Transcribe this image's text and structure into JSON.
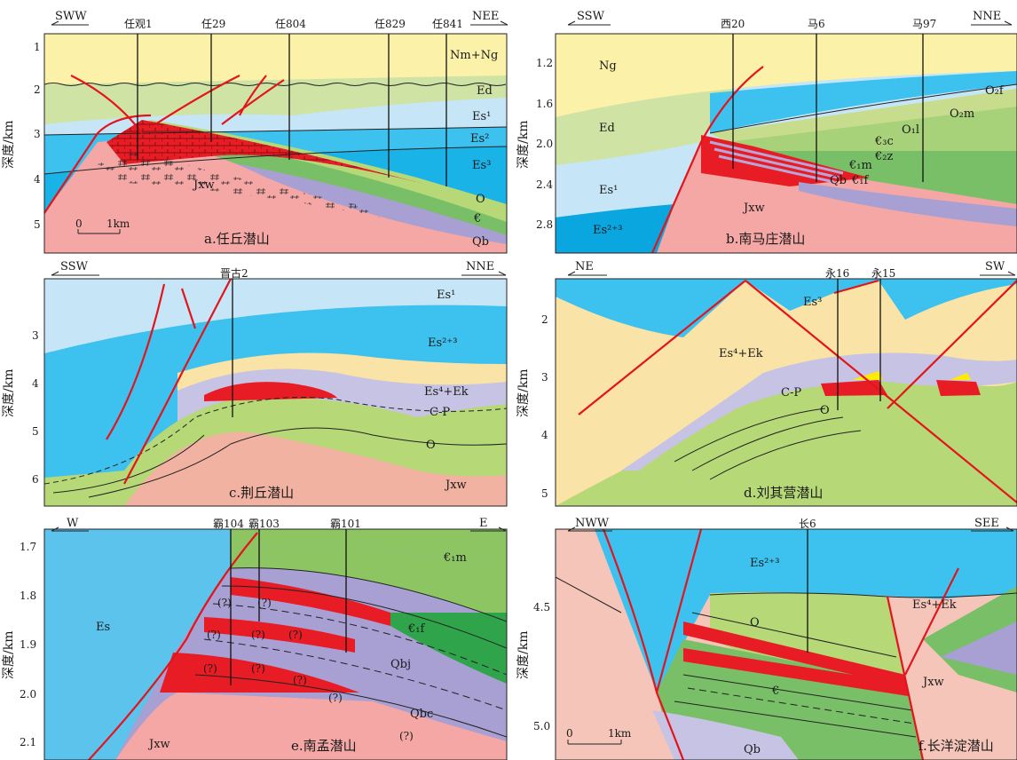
{
  "figure": {
    "depth_axis_label": "深度/km",
    "panels": [
      {
        "id": "a",
        "caption": "a.任丘潜山",
        "dir_left": "SWW",
        "dir_right": "NEE",
        "wells": [
          "任观1",
          "任29",
          "任804",
          "任829",
          "任841"
        ],
        "ticks": [
          "1",
          "2",
          "3",
          "4",
          "5"
        ],
        "units": [
          "Nm+Ng",
          "Ed",
          "Es¹",
          "Es²",
          "Es³",
          "Jxw",
          "O",
          "€",
          "Qb"
        ],
        "scale_bar": {
          "start": "0",
          "end": "1km"
        }
      },
      {
        "id": "b",
        "caption": "b.南马庄潜山",
        "dir_left": "SSW",
        "dir_right": "NNE",
        "wells": [
          "西20",
          "马6",
          "马97"
        ],
        "ticks": [
          "1.2",
          "1.6",
          "2.0",
          "2.4",
          "2.8"
        ],
        "units": [
          "Ng",
          "Ed",
          "Es¹",
          "Es²⁺³",
          "Jxw",
          "O₂f",
          "O₂m",
          "O₁l",
          "€₃c",
          "€₂z",
          "€₁m",
          "Qb",
          "€₁f"
        ]
      },
      {
        "id": "c",
        "caption": "c.荆丘潜山",
        "dir_left": "SSW",
        "dir_right": "NNE",
        "wells": [
          "晋古2"
        ],
        "ticks": [
          "3",
          "4",
          "5",
          "6"
        ],
        "units": [
          "Es¹",
          "Es²⁺³",
          "Es⁴+Ek",
          "C-P",
          "O",
          "Jxw"
        ]
      },
      {
        "id": "d",
        "caption": "d.刘其营潜山",
        "dir_left": "NE",
        "dir_right": "SW",
        "wells": [
          "永16",
          "永15"
        ],
        "ticks": [
          "2",
          "3",
          "4",
          "5"
        ],
        "units": [
          "Es³",
          "Es⁴+Ek",
          "C-P",
          "O"
        ]
      },
      {
        "id": "e",
        "caption": "e.南孟潜山",
        "dir_left": "W",
        "dir_right": "E",
        "wells": [
          "霸104",
          "霸103",
          "霸101"
        ],
        "ticks": [
          "1.7",
          "1.8",
          "1.9",
          "2.0",
          "2.1"
        ],
        "units": [
          "Es",
          "€₁m",
          "€₁f",
          "Qbj",
          "Qbc",
          "Jxw"
        ],
        "uncertain_marks": [
          "(?)",
          "(?)",
          "(?)",
          "(?)",
          "(?)",
          "(?)",
          "(?)",
          "(?)",
          "(?)",
          "(?)"
        ]
      },
      {
        "id": "f",
        "caption": "f.长洋淀潜山",
        "dir_left": "NWW",
        "dir_right": "SEE",
        "wells": [
          "长6"
        ],
        "ticks": [
          "4.5",
          "5.0"
        ],
        "units": [
          "Es²⁺³",
          "Es⁴+Ek",
          "O",
          "€",
          "Jxw",
          "Qb"
        ],
        "scale_bar": {
          "start": "0",
          "end": "1km"
        }
      }
    ],
    "colors": {
      "neogene": "#fbf1a9",
      "ed": "#cfe3a4",
      "es_light": "#c6e6f7",
      "es_blue": "#3dc1ef",
      "es_deep": "#0aa6e0",
      "jxw": "#f4a7a4",
      "ordovician": "#b7d877",
      "cambrian": "#79bf68",
      "qb": "#a89fd2",
      "reservoir": "#e81c24",
      "carboniferous": "#c7c3e4",
      "es4ek": "#f9e3a6",
      "fault": "#e3141b"
    }
  }
}
